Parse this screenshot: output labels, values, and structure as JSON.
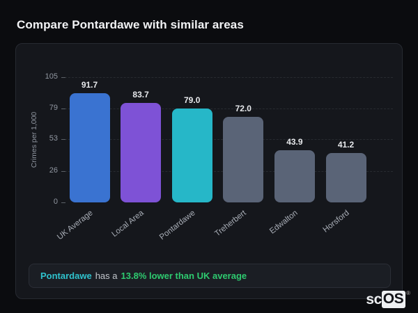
{
  "page": {
    "title": "Compare Pontardawe with similar areas"
  },
  "chart_data": {
    "type": "bar",
    "title": "Compare Pontardawe with similar areas",
    "xlabel": "",
    "ylabel": "Crimes per 1,000",
    "categories": [
      "UK Average",
      "Local Area",
      "Pontardawe",
      "Treherbert",
      "Edwalton",
      "Horsford"
    ],
    "values": [
      91.7,
      83.7,
      79.0,
      72.0,
      43.9,
      41.2
    ],
    "value_labels": [
      "91.7",
      "83.7",
      "79.0",
      "72.0",
      "43.9",
      "41.2"
    ],
    "bar_colors": [
      "#3a73d1",
      "#7e52d6",
      "#26b7c8",
      "#5a6477",
      "#5a6477",
      "#5a6477"
    ],
    "yticks": [
      0,
      26,
      53,
      79,
      105
    ],
    "ylim": [
      0,
      105
    ],
    "grid": "horizontal-dashed",
    "legend_position": "none"
  },
  "note": {
    "area": "Pontardawe",
    "middle": "has a",
    "stat": "13.8% lower than UK average",
    "area_color": "#2fc2cd",
    "stat_color": "#2ecb70"
  },
  "logo": {
    "prefix": "sc",
    "badge": "OS",
    "mark": "®"
  }
}
